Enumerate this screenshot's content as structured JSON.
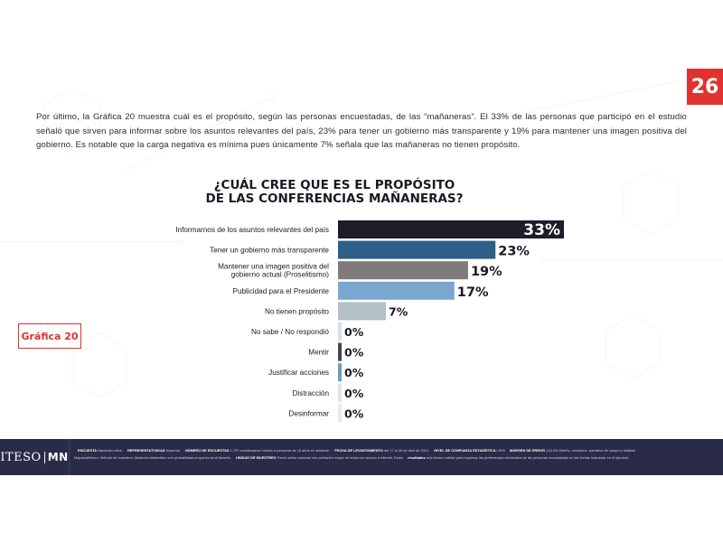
{
  "page": {
    "number": "26",
    "figure_label": "Gráfica 20"
  },
  "intro_text": "Por último, la Gráfica 20 muestra cuál es el propósito, según las personas encuestadas, de las “mañaneras”. El 33% de las personas que participó en el estudio señaló que sirven para informar sobre los asuntos relevantes del país, 23% para tener un gobierno más transparente y 19% para mantener una imagen positiva del gobierno. Es notable que la carga negativa es mínima pues únicamente 7% señala que las mañaneras no tienen propósito.",
  "chart_data": {
    "type": "bar",
    "orientation": "horizontal",
    "title": [
      "¿CUÁL CREE QUE ES EL PROPÓSITO",
      "DE LAS CONFERENCIAS MAÑANERAS?"
    ],
    "categories": [
      [
        "Informarnos de los asuntos relevantes del país"
      ],
      [
        "Tener un gobierno más transparente"
      ],
      [
        "Mantener una imagen positiva del",
        "gobierno actual (Proselitismo)"
      ],
      [
        "Publicidad para el Presidente"
      ],
      [
        "No tienen propósito"
      ],
      [
        "No sabe / No respondió"
      ],
      [
        "Mentir"
      ],
      [
        "Justificar acciones"
      ],
      [
        "Distracción"
      ],
      [
        "Desinformar"
      ]
    ],
    "values": [
      33,
      23,
      19,
      17,
      7,
      0,
      0,
      0,
      0,
      0
    ],
    "value_labels": [
      "33%",
      "23%",
      "19%",
      "17%",
      "7%",
      "0%",
      "0%",
      "0%",
      "0%",
      "0%"
    ],
    "colors": [
      "#1b1d28",
      "#2e5f86",
      "#7f7a7c",
      "#79a7cf",
      "#b3c0c7",
      "#d6e1e7",
      "#44464c",
      "#6f9bbf",
      "#e3e3e3",
      "#e9e9e9"
    ],
    "xlim": [
      0,
      33
    ],
    "grid": false,
    "legend": "none"
  },
  "footer": {
    "logo_left": "ITESO",
    "logo_right": "MN",
    "line1": [
      {
        "label": "ENCUESTA",
        "value": "Nacional online."
      },
      {
        "label": "REPRESENTATIVIDAD",
        "value": "Nacional."
      },
      {
        "label": "NÚMERO DE ENCUESTAS",
        "value": "1,757 cuestionarios hechos a personas de 18 años en adelante."
      },
      {
        "label": "FECHA DE LEVANTAMIENTO",
        "value": "del 17 al 28 de abril de 2021."
      },
      {
        "label": "NIVEL DE CONFIANZA ESTADÍSTICA:",
        "value": "95%"
      },
      {
        "label": "MARGEN DE ERROR",
        "value": "(±)2.4%"
      },
      {
        "label": "",
        "value": "Diseño, muestreo, operativo de campo y análisis:"
      }
    ],
    "line2": [
      {
        "label": "",
        "value": "Mapasdelfuturo. Método de muestreo: Aleatorio sistemático con probabilidad proporcional al tamaño."
      },
      {
        "label": "UNIDAD DE MUESTREO",
        "value": "Panel online nacional con población mayor de edad con acceso a internet."
      },
      {
        "label": "",
        "value": "Estos"
      },
      {
        "label": "resultados",
        "value": "solo tienen validez para expresar las preferencias electorales de las personas encuestadas en las fechas indicadas en el ejercicio."
      }
    ]
  }
}
